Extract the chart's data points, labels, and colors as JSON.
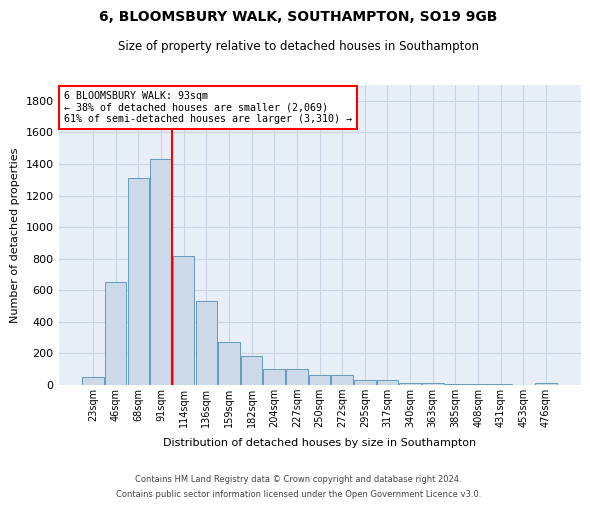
{
  "title1": "6, BLOOMSBURY WALK, SOUTHAMPTON, SO19 9GB",
  "title2": "Size of property relative to detached houses in Southampton",
  "xlabel": "Distribution of detached houses by size in Southampton",
  "ylabel": "Number of detached properties",
  "categories": [
    "23sqm",
    "46sqm",
    "68sqm",
    "91sqm",
    "114sqm",
    "136sqm",
    "159sqm",
    "182sqm",
    "204sqm",
    "227sqm",
    "250sqm",
    "272sqm",
    "295sqm",
    "317sqm",
    "340sqm",
    "363sqm",
    "385sqm",
    "408sqm",
    "431sqm",
    "453sqm",
    "476sqm"
  ],
  "values": [
    50,
    650,
    1310,
    1430,
    820,
    530,
    270,
    185,
    100,
    100,
    65,
    65,
    30,
    30,
    15,
    15,
    5,
    5,
    5,
    2,
    15
  ],
  "bar_color": "#ccd9e8",
  "bar_edge_color": "#6699bb",
  "annotation_text_line1": "6 BLOOMSBURY WALK: 93sqm",
  "annotation_text_line2": "← 38% of detached houses are smaller (2,069)",
  "annotation_text_line3": "61% of semi-detached houses are larger (3,310) →",
  "annotation_box_color": "white",
  "annotation_box_edge": "red",
  "vline_color": "red",
  "vline_x_index": 3.5,
  "ylim": [
    0,
    1900
  ],
  "yticks": [
    0,
    200,
    400,
    600,
    800,
    1000,
    1200,
    1400,
    1600,
    1800
  ],
  "grid_color": "#c8d4e4",
  "bg_color": "#e8eef8",
  "footer1": "Contains HM Land Registry data © Crown copyright and database right 2024.",
  "footer2": "Contains public sector information licensed under the Open Government Licence v3.0."
}
